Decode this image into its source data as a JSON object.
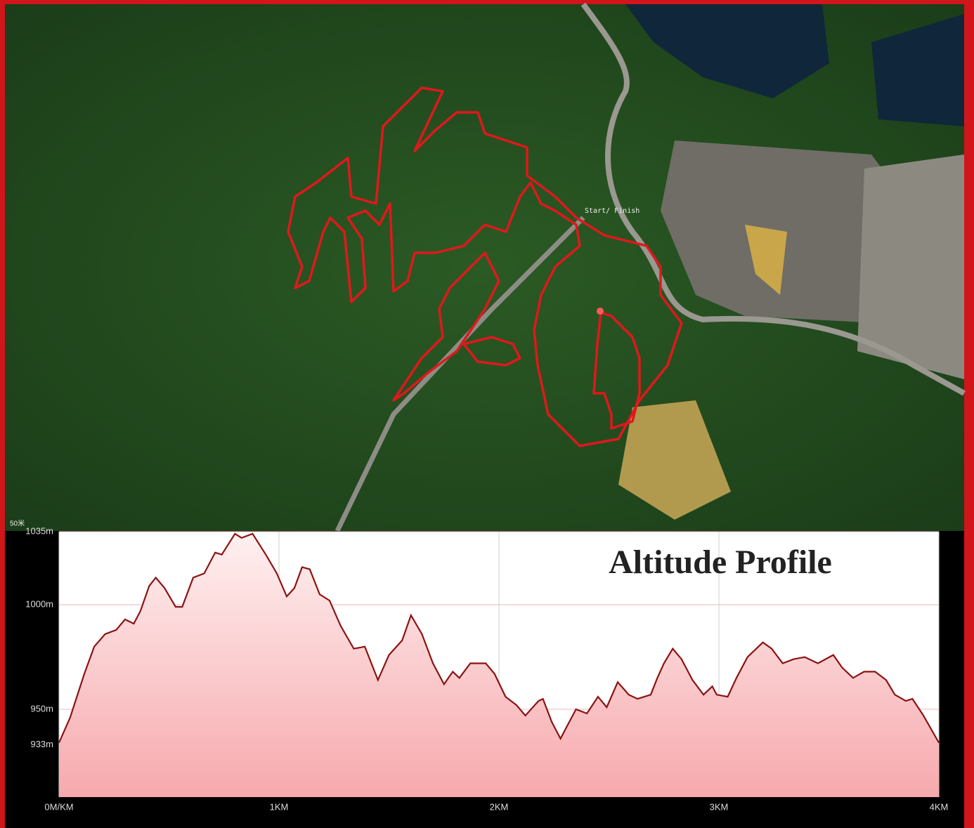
{
  "map": {
    "start_label": "Start/ Finish",
    "scale_label": "50米"
  },
  "chart_data": {
    "type": "area",
    "title": "Altitude Profile",
    "x": [
      0,
      0.05,
      0.115,
      0.16,
      0.21,
      0.26,
      0.3,
      0.34,
      0.37,
      0.41,
      0.44,
      0.48,
      0.53,
      0.56,
      0.61,
      0.66,
      0.71,
      0.74,
      0.8,
      0.83,
      0.88,
      0.94,
      0.99,
      1.035,
      1.07,
      1.105,
      1.14,
      1.185,
      1.23,
      1.28,
      1.34,
      1.39,
      1.45,
      1.5,
      1.56,
      1.6,
      1.65,
      1.7,
      1.75,
      1.79,
      1.82,
      1.87,
      1.94,
      1.98,
      2.03,
      2.08,
      2.12,
      2.18,
      2.2,
      2.24,
      2.28,
      2.31,
      2.35,
      2.4,
      2.45,
      2.49,
      2.54,
      2.59,
      2.63,
      2.69,
      2.72,
      2.75,
      2.79,
      2.83,
      2.88,
      2.93,
      2.97,
      2.99,
      3.04,
      3.08,
      3.13,
      3.2,
      3.24,
      3.29,
      3.34,
      3.39,
      3.45,
      3.52,
      3.56,
      3.61,
      3.66,
      3.71,
      3.76,
      3.8,
      3.85,
      3.88,
      3.93,
      4.0
    ],
    "values": [
      934,
      946,
      967,
      980,
      986,
      988,
      993,
      991,
      997,
      1009,
      1013,
      1008,
      999,
      999,
      1013,
      1015,
      1025,
      1024,
      1034,
      1032,
      1034,
      1024,
      1015,
      1004,
      1008,
      1018,
      1017,
      1005,
      1002,
      990,
      979,
      980,
      964,
      976,
      983,
      995,
      986,
      972,
      962,
      968,
      965,
      972,
      972,
      967,
      956,
      952,
      947,
      954,
      955,
      944,
      936,
      942,
      950,
      948,
      956,
      951,
      963,
      957,
      955,
      957,
      965,
      972,
      979,
      974,
      964,
      957,
      961,
      957,
      956,
      965,
      975,
      982,
      979,
      972,
      974,
      975,
      972,
      976,
      970,
      965,
      968,
      968,
      964,
      957,
      954,
      955,
      947,
      934
    ],
    "color": "#8b1414",
    "xlim": [
      0,
      4
    ],
    "ylim": [
      908,
      1035
    ],
    "xticks": [
      {
        "value": 0,
        "label": "0M/KM"
      },
      {
        "value": 1,
        "label": "1KM"
      },
      {
        "value": 2,
        "label": "2KM"
      },
      {
        "value": 3,
        "label": "3KM"
      },
      {
        "value": 4,
        "label": "4KM"
      }
    ],
    "yticks": [
      {
        "value": 933,
        "label": "933m"
      },
      {
        "value": 950,
        "label": "950m"
      },
      {
        "value": 1000,
        "label": "1000m"
      },
      {
        "value": 1035,
        "label": "1035m"
      }
    ],
    "grid": true
  }
}
